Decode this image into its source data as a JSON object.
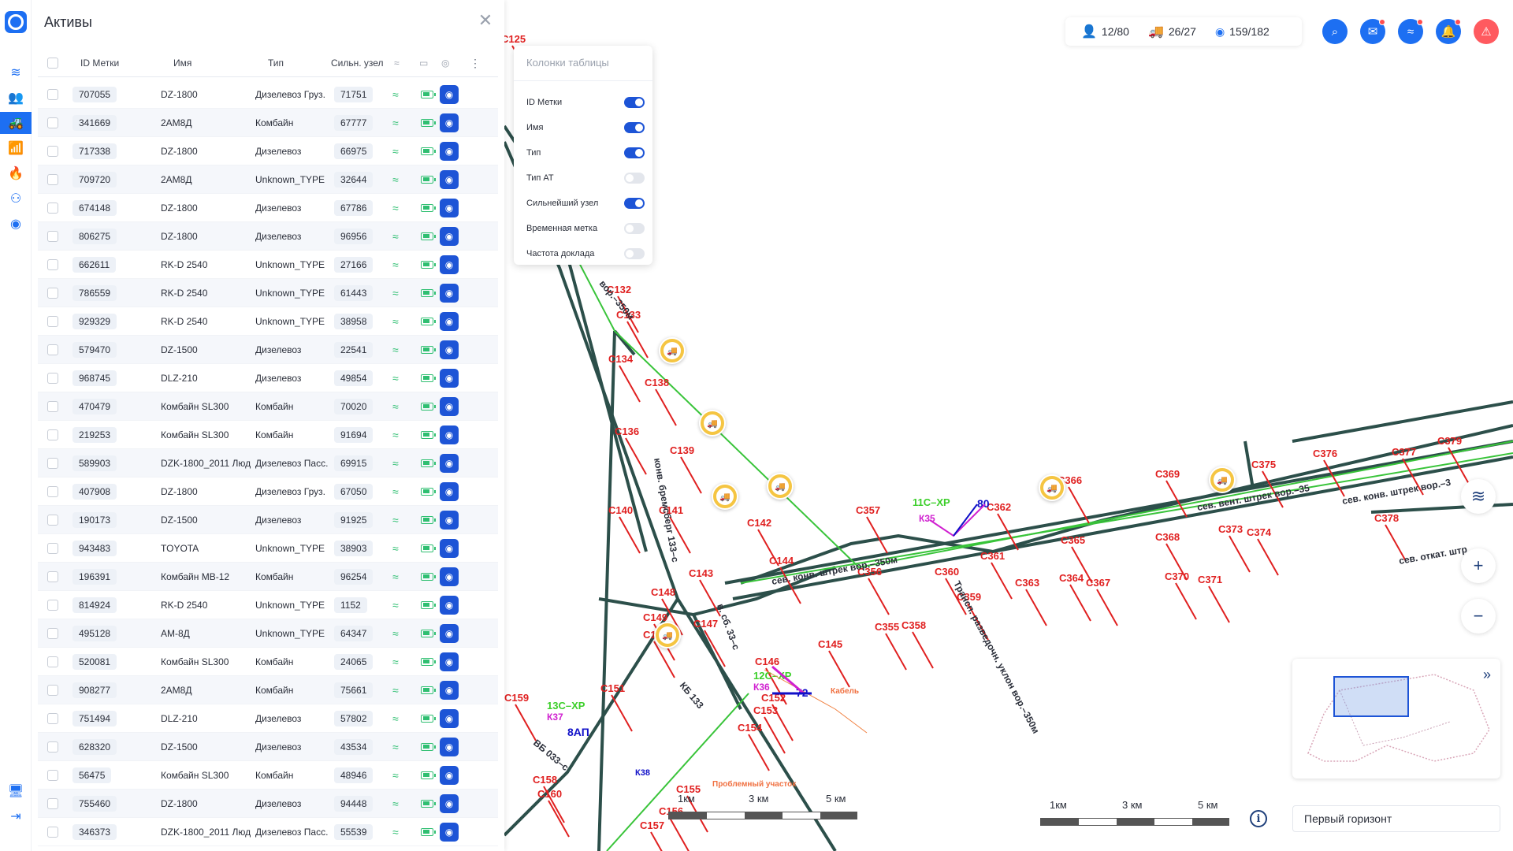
{
  "colors": {
    "accent": "#1d6ff2",
    "dark_accent": "#1d54d6",
    "ok_green": "#2fbf71",
    "alert_red": "#ff4d4f",
    "truck_yellow": "#f5c542"
  },
  "sidebar": {
    "items": [
      {
        "icon": "layers-icon",
        "active": false
      },
      {
        "icon": "people-icon",
        "active": false
      },
      {
        "icon": "vehicle-icon",
        "active": true
      },
      {
        "icon": "router-icon",
        "active": false
      },
      {
        "icon": "fire-icon",
        "active": false
      },
      {
        "icon": "route-icon",
        "active": false
      },
      {
        "icon": "broadcast-icon",
        "active": false
      }
    ],
    "bottom": [
      {
        "icon": "monitor-icon"
      },
      {
        "icon": "logout-icon"
      }
    ]
  },
  "panel": {
    "title": "Активы",
    "columns": {
      "id": "ID Метки",
      "name": "Имя",
      "type": "Тип",
      "node": "Сильн. узел"
    },
    "rows": [
      {
        "id": "707055",
        "name": "DZ-1800",
        "type": "Дизелевоз Груз.",
        "node": "71751"
      },
      {
        "id": "341669",
        "name": "2АМ8Д",
        "type": "Комбайн",
        "node": "67777"
      },
      {
        "id": "717338",
        "name": "DZ-1800",
        "type": "Дизелевоз",
        "node": "66975"
      },
      {
        "id": "709720",
        "name": "2АМ8Д",
        "type": "Unknown_TYPE",
        "node": "32644"
      },
      {
        "id": "674148",
        "name": "DZ-1800",
        "type": "Дизелевоз",
        "node": "67786"
      },
      {
        "id": "806275",
        "name": "DZ-1800",
        "type": "Дизелевоз",
        "node": "96956"
      },
      {
        "id": "662611",
        "name": "RK-D 2540",
        "type": "Unknown_TYPE",
        "node": "27166"
      },
      {
        "id": "786559",
        "name": "RK-D 2540",
        "type": "Unknown_TYPE",
        "node": "61443"
      },
      {
        "id": "929329",
        "name": "RK-D 2540",
        "type": "Unknown_TYPE",
        "node": "38958"
      },
      {
        "id": "579470",
        "name": "DZ-1500",
        "type": "Дизелевоз",
        "node": "22541"
      },
      {
        "id": "968745",
        "name": "DLZ-210",
        "type": "Дизелевоз",
        "node": "49854"
      },
      {
        "id": "470479",
        "name": "Комбайн SL300",
        "type": "Комбайн",
        "node": "70020"
      },
      {
        "id": "219253",
        "name": "Комбайн SL300",
        "type": "Комбайн",
        "node": "91694"
      },
      {
        "id": "589903",
        "name": "DZK-1800_2011 Люд",
        "type": "Дизелевоз Пасс.",
        "node": "69915"
      },
      {
        "id": "407908",
        "name": "DZ-1800",
        "type": "Дизелевоз Груз.",
        "node": "67050"
      },
      {
        "id": "190173",
        "name": "DZ-1500",
        "type": "Дизелевоз",
        "node": "91925"
      },
      {
        "id": "943483",
        "name": "TOYOTA",
        "type": "Unknown_TYPE",
        "node": "38903"
      },
      {
        "id": "196391",
        "name": "Комбайн МВ-12",
        "type": "Комбайн",
        "node": "96254"
      },
      {
        "id": "814924",
        "name": "RK-D 2540",
        "type": "Unknown_TYPE",
        "node": "1152"
      },
      {
        "id": "495128",
        "name": "АМ-8Д",
        "type": "Unknown_TYPE",
        "node": "64347"
      },
      {
        "id": "520081",
        "name": "Комбайн SL300",
        "type": "Комбайн",
        "node": "24065"
      },
      {
        "id": "908277",
        "name": "2АМ8Д",
        "type": "Комбайн",
        "node": "75661"
      },
      {
        "id": "751494",
        "name": "DLZ-210",
        "type": "Дизелевоз",
        "node": "57802"
      },
      {
        "id": "628320",
        "name": "DZ-1500",
        "type": "Дизелевоз",
        "node": "43534"
      },
      {
        "id": "56475",
        "name": "Комбайн SL300",
        "type": "Комбайн",
        "node": "48946"
      },
      {
        "id": "755460",
        "name": "DZ-1800",
        "type": "Дизелевоз",
        "node": "94448"
      },
      {
        "id": "346373",
        "name": "DZK-1800_2011 Люд",
        "type": "Дизелевоз Пасс.",
        "node": "55539"
      }
    ]
  },
  "columns_popup": {
    "title": "Колонки таблицы",
    "items": [
      {
        "label": "ID Метки",
        "on": true
      },
      {
        "label": "Имя",
        "on": true
      },
      {
        "label": "Тип",
        "on": true
      },
      {
        "label": "Тип АТ",
        "on": false
      },
      {
        "label": "Сильнейший узел",
        "on": true
      },
      {
        "label": "Временная метка",
        "on": false
      },
      {
        "label": "Частота доклада",
        "on": false
      }
    ]
  },
  "stats": {
    "people": "12/80",
    "vehicles": "26/27",
    "nodes": "159/182"
  },
  "map": {
    "labels": [
      "С125",
      "С132",
      "С133",
      "С134",
      "С136",
      "С138",
      "С139",
      "С140",
      "С141",
      "С142",
      "С143",
      "С144",
      "С145",
      "С146",
      "С147",
      "С148",
      "С149",
      "С150",
      "С151",
      "С152",
      "С153",
      "С154",
      "С155",
      "С156",
      "С157",
      "С158",
      "С159",
      "С160",
      "С355",
      "С356",
      "С357",
      "С358",
      "С359",
      "С360",
      "С361",
      "С362",
      "С363",
      "С364",
      "С365",
      "С366",
      "С367",
      "С368",
      "С369",
      "С370",
      "С371",
      "С373",
      "С374",
      "С375",
      "С376",
      "С377",
      "С378",
      "С379"
    ],
    "tunnel_labels": [
      "сев. вент. штрек вор.–35",
      "сев. конв. штрек вор.–350м",
      "сев. конв. штрек вор.–3",
      "сев. откат. штр",
      "конв. бремсберг 133–с",
      "в. сб. 33–с",
      "КБ 133",
      "ВБ 033–с",
      "вор.–350м",
      "Трансп. разведочн. уклон вор.–350м"
    ],
    "markers": [
      "11С–ХР",
      "К35",
      "80",
      "12С–ХР",
      "К36",
      "72",
      "13С–ХР",
      "К37",
      "8АП",
      "К38",
      "Кабель",
      "Проблемный участок"
    ]
  },
  "scales": {
    "left": {
      "labels": [
        "1км",
        "3 км",
        "5 км"
      ]
    },
    "right": {
      "labels": [
        "1км",
        "3 км",
        "5 км"
      ]
    }
  },
  "horizon": "Первый горизонт"
}
